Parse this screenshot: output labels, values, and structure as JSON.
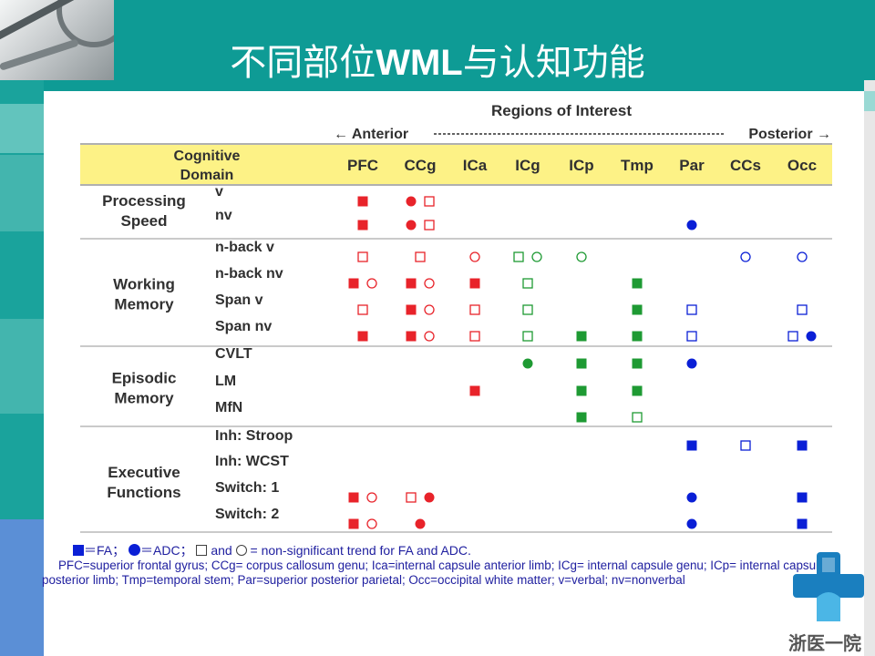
{
  "slide": {
    "title_cn_1": "不同部位",
    "title_latin": "WML",
    "title_cn_2": "与认知功能"
  },
  "table": {
    "regions_title": "Regions of Interest",
    "anterior": "← Anterior",
    "posterior": "Posterior →",
    "domain_header": [
      "Cognitive",
      "Domain"
    ],
    "columns": [
      "PFC",
      "CCg",
      "ICa",
      "ICg",
      "ICp",
      "Tmp",
      "Par",
      "CCs",
      "Occ"
    ],
    "groups": [
      {
        "domain": [
          "Processing",
          "Speed"
        ],
        "rows": [
          {
            "label": "v",
            "marks": [
              [
                "fs"
              ],
              [
                "fd",
                "os"
              ],
              [],
              [],
              [],
              [],
              [],
              [],
              []
            ]
          },
          {
            "label": "nv",
            "marks": [
              [
                "fs"
              ],
              [
                "fd",
                "os"
              ],
              [],
              [],
              [],
              [],
              [
                "bd"
              ],
              [],
              []
            ]
          }
        ]
      },
      {
        "domain": [
          "Working",
          "Memory"
        ],
        "rows": [
          {
            "label": "n-back v",
            "marks": [
              [
                "os"
              ],
              [
                "os"
              ],
              [
                "od"
              ],
              [
                "gos",
                "god"
              ],
              [
                "god"
              ],
              [],
              [],
              [
                "bod"
              ],
              [
                "bod"
              ]
            ]
          },
          {
            "label": "n-back nv",
            "marks": [
              [
                "fs",
                "od"
              ],
              [
                "fs",
                "od"
              ],
              [
                "fs"
              ],
              [
                "gos"
              ],
              [],
              [
                "gs"
              ],
              [],
              [],
              []
            ]
          },
          {
            "label": "Span v",
            "marks": [
              [
                "os"
              ],
              [
                "fs",
                "od"
              ],
              [
                "os"
              ],
              [
                "gos"
              ],
              [],
              [
                "gs"
              ],
              [
                "bos"
              ],
              [],
              [
                "bos"
              ]
            ]
          },
          {
            "label": "Span nv",
            "marks": [
              [
                "fs"
              ],
              [
                "fs",
                "od"
              ],
              [
                "os"
              ],
              [
                "gos"
              ],
              [
                "gs"
              ],
              [
                "gs"
              ],
              [
                "bos"
              ],
              [],
              [
                "bos",
                "bd"
              ]
            ]
          }
        ]
      },
      {
        "domain": [
          "Episodic",
          "Memory"
        ],
        "rows": [
          {
            "label": "CVLT",
            "marks": [
              [],
              [],
              [],
              [
                "gd"
              ],
              [
                "gs"
              ],
              [
                "gs"
              ],
              [
                "bd"
              ],
              [],
              []
            ]
          },
          {
            "label": "LM",
            "marks": [
              [],
              [],
              [
                "fs"
              ],
              [],
              [
                "gs"
              ],
              [
                "gs"
              ],
              [],
              [],
              []
            ]
          },
          {
            "label": "MfN",
            "marks": [
              [],
              [],
              [],
              [],
              [
                "gs"
              ],
              [
                "gos"
              ],
              [],
              [],
              []
            ]
          }
        ]
      },
      {
        "domain": [
          "Executive",
          "Functions"
        ],
        "rows": [
          {
            "label": "Inh: Stroop",
            "marks": [
              [],
              [],
              [],
              [],
              [],
              [],
              [
                "bs"
              ],
              [
                "bos"
              ],
              [
                "bs"
              ]
            ]
          },
          {
            "label": "Inh: WCST",
            "marks": [
              [],
              [],
              [],
              [],
              [],
              [],
              [],
              [],
              []
            ]
          },
          {
            "label": "Switch: 1",
            "marks": [
              [
                "fs",
                "od"
              ],
              [
                "os",
                "fd"
              ],
              [],
              [],
              [],
              [],
              [
                "bd"
              ],
              [],
              [
                "bs"
              ]
            ]
          },
          {
            "label": "Switch: 2",
            "marks": [
              [
                "fs",
                "od"
              ],
              [
                "fd"
              ],
              [],
              [],
              [],
              [],
              [
                "bd"
              ],
              [],
              [
                "bs"
              ]
            ]
          }
        ]
      }
    ]
  },
  "legend": {
    "fa": "＝FA；",
    "adc": "＝ADC；",
    "and": " and ",
    "trend": " = non-significant trend for FA and ADC."
  },
  "footnote": "PFC=superior frontal gyrus; CCg= corpus callosum genu; Ica=internal capsule anterior limb; ICg= internal capsule genu; ICp= internal capsule posterior limb; Tmp=temporal stem; Par=superior posterior parietal; Occ=occipital white matter; v=verbal; nv=nonverbal",
  "logo_text": "浙医一院",
  "colors": {
    "teal": "#0e9b95",
    "header_fill": "#fdf286",
    "red": "#e8232a",
    "green": "#1e9a33",
    "blue": "#0a1fd6",
    "text_blue": "#2020a0"
  }
}
